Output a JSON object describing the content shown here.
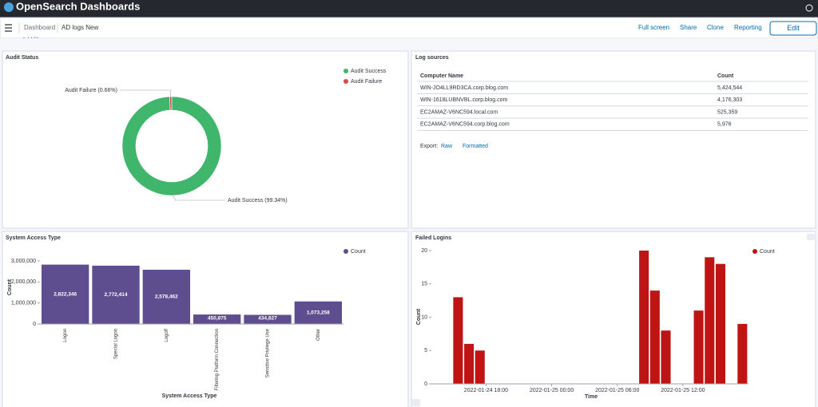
{
  "header": {
    "brand": "OpenSearch Dashboards"
  },
  "toolbar": {
    "breadcrumbs": [
      "Dashboard",
      "AD logs New"
    ],
    "actions": [
      "Full screen",
      "Share",
      "Clone",
      "Reporting"
    ],
    "edit": "Edit",
    "filter_hint": "+ Add filter"
  },
  "log_sources": {
    "title": "Log sources",
    "columns": [
      "Computer Name",
      "Count"
    ],
    "rows": [
      [
        "WIN-JO4LL9RD3CA.corp.blog.com",
        "5,424,544"
      ],
      [
        "WIN-1618LUBNVBL.corp.blog.com",
        "4,176,303"
      ],
      [
        "EC2AMAZ-V6NC594.local.com",
        "525,359"
      ],
      [
        "EC2AMAZ-V6NC594.corp.blog.com",
        "5,976"
      ]
    ],
    "export": {
      "label": "Export:",
      "raw": "Raw",
      "formatted": "Formatted"
    }
  },
  "chart_data": [
    {
      "type": "pie",
      "title": "Audit Status",
      "categories": [
        "Audit Success",
        "Audit Failure"
      ],
      "values": [
        99.34,
        0.66
      ],
      "value_labels": [
        "Audit Success (99.34%)",
        "Audit Failure (0.66%)"
      ],
      "colors": [
        "#3fb66b",
        "#d84a4a"
      ],
      "donut": true,
      "legend": "top-right"
    },
    {
      "type": "bar",
      "title": "System Access Type",
      "xlabel": "System Access Type",
      "ylabel": "Count",
      "categories": [
        "Logon",
        "Special Logon",
        "Logoff",
        "Filtering Platform Connection",
        "Sensitive Privilege Use",
        "Other"
      ],
      "series": [
        {
          "name": "Count",
          "color": "#5e4d8f",
          "values": [
            2822346,
            2772414,
            2578462,
            450875,
            434827,
            1073258
          ],
          "value_labels": [
            "2,822,346",
            "2,772,414",
            "2,578,462",
            "450,875",
            "434,827",
            "1,073,258"
          ]
        }
      ],
      "ylim": [
        0,
        3300000
      ],
      "yticks": [
        0,
        {
          "value": 1000000,
          "label": "1,000,000"
        },
        {
          "value": 2000000,
          "label": "2,000,000"
        },
        {
          "value": 3000000,
          "label": "3,000,000"
        }
      ],
      "legend": "top-right"
    },
    {
      "type": "time-bar",
      "title": "Failed Logins",
      "xlabel": "Time",
      "ylabel": "Count",
      "x": [
        "2022-01-24 15:00",
        "2022-01-24 16:00",
        "2022-01-24 17:00",
        "2022-01-25 08:00",
        "2022-01-25 09:00",
        "2022-01-25 10:00",
        "2022-01-25 13:00",
        "2022-01-25 14:00",
        "2022-01-25 15:00",
        "2022-01-25 17:00"
      ],
      "series": [
        {
          "name": "Count",
          "color": "#bf1414",
          "values": [
            13,
            6,
            5,
            20,
            14,
            8,
            11,
            19,
            18,
            9
          ]
        }
      ],
      "xlim": [
        "2022-01-24 13:00",
        "2022-01-25 18:00"
      ],
      "xticks": [
        "2022-01-24 18:00",
        "2022-01-25 00:00",
        "2022-01-25 06:00",
        "2022-01-25 12:00"
      ],
      "ylim": [
        0,
        20
      ],
      "yticks": [
        0,
        5,
        10,
        15,
        20
      ],
      "legend": "top-right"
    }
  ]
}
